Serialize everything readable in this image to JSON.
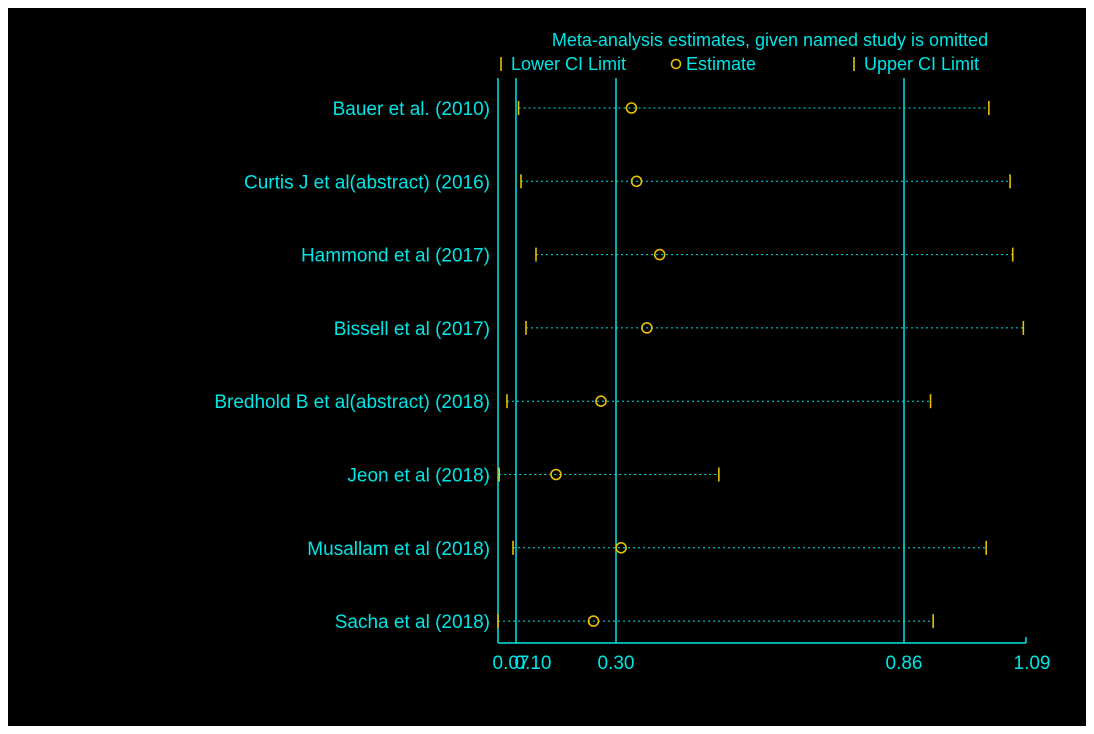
{
  "chart_data": {
    "type": "influence-plot",
    "title": "Meta-analysis estimates, given named study is omitted",
    "legend": {
      "placement": "top",
      "entries": [
        {
          "symbol": "|",
          "label": "Lower CI Limit"
        },
        {
          "symbol": "o",
          "label": "Estimate"
        },
        {
          "symbol": "|",
          "label": "Upper CI Limit"
        }
      ]
    },
    "x_ticks": [
      "0.07",
      "0.10",
      "0.30",
      "0.86",
      "1.09"
    ],
    "tick_values": [
      0.07,
      0.1,
      0.3,
      0.86,
      1.09
    ],
    "reference_lines": [
      0.1,
      0.3,
      0.86
    ],
    "xlim": [
      0.07,
      1.09
    ],
    "grid": false,
    "studies": [
      {
        "label": "Bauer et al.  (2010)",
        "lower": 0.105,
        "estimate": 0.33,
        "upper": 1.02
      },
      {
        "label": "Curtis J et al(abstract)  (2016)",
        "lower": 0.11,
        "estimate": 0.34,
        "upper": 1.06
      },
      {
        "label": "Hammond et al  (2017)",
        "lower": 0.14,
        "estimate": 0.385,
        "upper": 1.065
      },
      {
        "label": "Bissell et al  (2017)",
        "lower": 0.12,
        "estimate": 0.36,
        "upper": 1.085
      },
      {
        "label": "Bredhold B et al(abstract)  (2018)",
        "lower": 0.085,
        "estimate": 0.27,
        "upper": 0.91
      },
      {
        "label": "Jeon et al  (2018)",
        "lower": 0.072,
        "estimate": 0.18,
        "upper": 0.5
      },
      {
        "label": "Musallam et al  (2018)",
        "lower": 0.095,
        "estimate": 0.31,
        "upper": 1.015
      },
      {
        "label": "Sacha et al (2018)",
        "lower": 0.07,
        "estimate": 0.255,
        "upper": 0.915
      }
    ],
    "colors": {
      "text": "#00e5e5",
      "axis": "#00e5e5",
      "markers": "#e8c000",
      "background": "#000000"
    }
  }
}
